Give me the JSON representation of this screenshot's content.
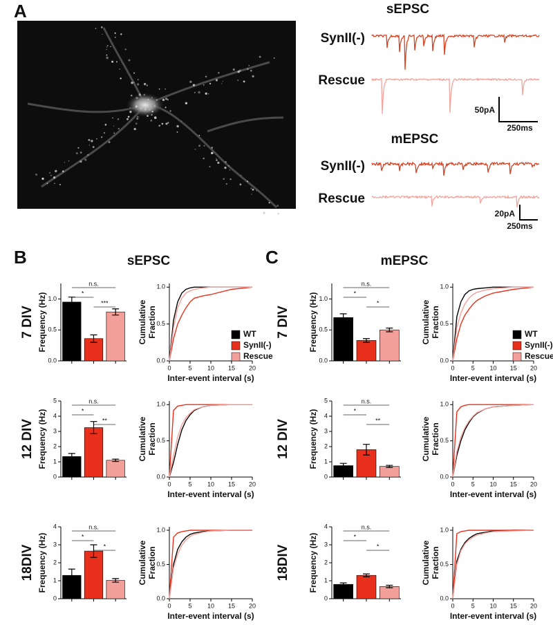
{
  "figure": {
    "panel_labels": [
      "A",
      "B",
      "C"
    ],
    "traces": {
      "s_title": "sEPSC",
      "s_labels": [
        "SynII(-)",
        "Rescue"
      ],
      "s_scale": [
        "50pA",
        "250ms"
      ],
      "m_title": "mEPSC",
      "m_labels": [
        "SynII(-)",
        "Rescue"
      ],
      "m_scale": [
        "20pA",
        "250ms"
      ]
    },
    "panel_titles": [
      "sEPSC",
      "mEPSC"
    ],
    "row_labels": [
      [
        "7 DIV",
        "12 DIV",
        "18DIV"
      ],
      [
        "7 DIV",
        "12 DIV",
        "18DIV"
      ]
    ]
  },
  "chart_data": [
    {
      "type": "bar",
      "ylabel": "Frequency (Hz)",
      "categories": [
        null,
        null,
        null
      ],
      "values": [
        0.95,
        0.36,
        0.79
      ],
      "errors": [
        0.08,
        0.06,
        0.05
      ],
      "colors": [
        "#000000",
        "#e8301c",
        "#f4a09a"
      ],
      "ylim": [
        0,
        1.25
      ],
      "yticks": [
        {
          "value": 0,
          "label": "0.0"
        },
        {
          "value": 0.5,
          "label": "0.5"
        },
        {
          "value": 1,
          "label": "1.0"
        }
      ],
      "annotations": [
        "n.s.",
        "*",
        "***"
      ]
    },
    {
      "type": "line",
      "xlabel": "Inter-event interval (s)",
      "ylabel": [
        "Cumulative",
        "Fraction"
      ],
      "x": [
        0,
        1,
        2,
        3,
        4,
        5,
        6,
        8,
        10,
        15,
        20
      ],
      "xlim": [
        0,
        20
      ],
      "xticks": [
        0,
        5,
        10,
        15,
        20
      ],
      "ylim": [
        0,
        1.05
      ],
      "yticks": [
        {
          "value": 0,
          "label": "0.0"
        },
        {
          "value": 0.5,
          "label": "0.5"
        },
        {
          "value": 1,
          "label": "1.0"
        }
      ],
      "legend": "lower right",
      "series": [
        {
          "name": "WT",
          "color": "#000000",
          "values": [
            0,
            0.55,
            0.8,
            0.92,
            0.97,
            0.99,
            1,
            1,
            1,
            1,
            1
          ]
        },
        {
          "name": "SynII(-)",
          "color": "#e8301c",
          "values": [
            0,
            0.3,
            0.5,
            0.62,
            0.72,
            0.8,
            0.85,
            0.88,
            0.9,
            0.97,
            1
          ]
        },
        {
          "name": "Rescue",
          "color": "#f4a09a",
          "values": [
            0,
            0.45,
            0.72,
            0.85,
            0.92,
            0.95,
            0.97,
            0.99,
            1,
            1,
            1
          ]
        }
      ]
    },
    {
      "type": "bar",
      "ylabel": "Frequency (Hz)",
      "categories": [
        null,
        null,
        null
      ],
      "values": [
        1.35,
        3.25,
        1.1
      ],
      "errors": [
        0.2,
        0.4,
        0.08
      ],
      "colors": [
        "#000000",
        "#e8301c",
        "#f4a09a"
      ],
      "ylim": [
        0,
        5
      ],
      "yticks": [
        0,
        1,
        2,
        3,
        4,
        5
      ],
      "annotations": [
        "n.s.",
        "*",
        "**"
      ]
    },
    {
      "type": "line",
      "xlabel": "Inter-event interval (s)",
      "ylabel": [
        "Cumulative",
        "Fraction"
      ],
      "x": [
        0,
        1,
        2,
        3,
        4,
        5,
        6,
        8,
        10,
        15,
        20
      ],
      "xlim": [
        0,
        20
      ],
      "xticks": [
        0,
        5,
        10,
        15,
        20
      ],
      "ylim": [
        0,
        1.05
      ],
      "yticks": [
        {
          "value": 0,
          "label": "0.0"
        },
        {
          "value": 0.5,
          "label": "0.5"
        },
        {
          "value": 1,
          "label": "1.0"
        }
      ],
      "series": [
        {
          "name": "WT",
          "color": "#000000",
          "values": [
            0,
            0.2,
            0.45,
            0.65,
            0.78,
            0.86,
            0.92,
            0.97,
            0.99,
            1,
            1
          ]
        },
        {
          "name": "SynII(-)",
          "color": "#e8301c",
          "values": [
            0,
            0.92,
            0.98,
            0.99,
            1,
            1,
            1,
            1,
            1,
            1,
            1
          ]
        },
        {
          "name": "Rescue",
          "color": "#f4a09a",
          "values": [
            0,
            0.3,
            0.55,
            0.72,
            0.82,
            0.88,
            0.93,
            0.97,
            0.99,
            1,
            1
          ]
        }
      ]
    },
    {
      "type": "bar",
      "ylabel": "Frequency (Hz)",
      "categories": [
        null,
        null,
        null
      ],
      "values": [
        1.3,
        2.65,
        1.02
      ],
      "errors": [
        0.35,
        0.35,
        0.1
      ],
      "colors": [
        "#000000",
        "#e8301c",
        "#f4a09a"
      ],
      "ylim": [
        0,
        4
      ],
      "yticks": [
        0,
        1,
        2,
        3,
        4
      ],
      "annotations": [
        "n.s.",
        "*",
        "*"
      ]
    },
    {
      "type": "line",
      "xlabel": "Inter-event interval (s)",
      "ylabel": [
        "Cumulative",
        "Fraction"
      ],
      "x": [
        0,
        1,
        2,
        3,
        4,
        5,
        6,
        8,
        10,
        15,
        20
      ],
      "xlim": [
        0,
        20
      ],
      "xticks": [
        0,
        5,
        10,
        15,
        20
      ],
      "ylim": [
        0,
        1.05
      ],
      "yticks": [
        {
          "value": 0,
          "label": "0.0"
        },
        {
          "value": 0.5,
          "label": "0.5"
        },
        {
          "value": 1,
          "label": "1.0"
        }
      ],
      "series": [
        {
          "name": "WT",
          "color": "#000000",
          "values": [
            0,
            0.5,
            0.72,
            0.83,
            0.9,
            0.94,
            0.96,
            0.98,
            0.99,
            1,
            1
          ]
        },
        {
          "name": "SynII(-)",
          "color": "#e8301c",
          "values": [
            0,
            0.9,
            0.96,
            0.98,
            0.99,
            1,
            1,
            1,
            1,
            1,
            1
          ]
        },
        {
          "name": "Rescue",
          "color": "#f4a09a",
          "values": [
            0,
            0.45,
            0.65,
            0.78,
            0.86,
            0.91,
            0.94,
            0.97,
            0.99,
            1,
            1
          ]
        }
      ]
    },
    {
      "type": "bar",
      "ylabel": "Frequency (Hz)",
      "categories": [
        null,
        null,
        null
      ],
      "values": [
        0.7,
        0.33,
        0.5
      ],
      "errors": [
        0.06,
        0.03,
        0.03
      ],
      "colors": [
        "#000000",
        "#e8301c",
        "#f4a09a"
      ],
      "ylim": [
        0,
        1.25
      ],
      "yticks": [
        {
          "value": 0,
          "label": "0.0"
        },
        {
          "value": 0.5,
          "label": "0.5"
        },
        {
          "value": 1,
          "label": "1.0"
        }
      ],
      "annotations": [
        "n.s.",
        "*",
        "*"
      ]
    },
    {
      "type": "line",
      "xlabel": "Inter-event interval (s)",
      "ylabel": [
        "Cumulative",
        "Fraction"
      ],
      "x": [
        0,
        1,
        2,
        3,
        4,
        5,
        6,
        8,
        10,
        15,
        20
      ],
      "xlim": [
        0,
        20
      ],
      "xticks": [
        0,
        5,
        10,
        15,
        20
      ],
      "ylim": [
        0,
        1.05
      ],
      "yticks": [
        {
          "value": 0,
          "label": "0.0"
        },
        {
          "value": 0.5,
          "label": "0.5"
        },
        {
          "value": 1,
          "label": "1.0"
        }
      ],
      "legend": "lower right",
      "series": [
        {
          "name": "WT",
          "color": "#000000",
          "values": [
            0,
            0.6,
            0.8,
            0.9,
            0.95,
            0.97,
            0.98,
            0.99,
            1,
            1,
            1
          ]
        },
        {
          "name": "SynII(-)",
          "color": "#e8301c",
          "values": [
            0,
            0.3,
            0.5,
            0.62,
            0.7,
            0.77,
            0.82,
            0.88,
            0.92,
            0.97,
            1
          ]
        },
        {
          "name": "Rescue",
          "color": "#f4a09a",
          "values": [
            0,
            0.45,
            0.65,
            0.77,
            0.85,
            0.9,
            0.93,
            0.96,
            0.98,
            1,
            1
          ]
        }
      ]
    },
    {
      "type": "bar",
      "ylabel": "Frequency (Hz)",
      "categories": [
        null,
        null,
        null
      ],
      "values": [
        0.75,
        1.8,
        0.7
      ],
      "errors": [
        0.15,
        0.35,
        0.07
      ],
      "colors": [
        "#000000",
        "#e8301c",
        "#f4a09a"
      ],
      "ylim": [
        0,
        5
      ],
      "yticks": [
        0,
        1,
        2,
        3,
        4,
        5
      ],
      "annotations": [
        "n.s.",
        "*",
        "**"
      ]
    },
    {
      "type": "line",
      "xlabel": "Inter-event interval (s)",
      "ylabel": [
        "Cumulative",
        "Fraction"
      ],
      "x": [
        0,
        1,
        2,
        3,
        4,
        5,
        6,
        8,
        10,
        15,
        20
      ],
      "xlim": [
        0,
        20
      ],
      "xticks": [
        0,
        5,
        10,
        15,
        20
      ],
      "ylim": [
        0,
        1.05
      ],
      "yticks": [
        {
          "value": 0,
          "label": "0.0"
        },
        {
          "value": 0.5,
          "label": "0.5"
        },
        {
          "value": 1,
          "label": "1.0"
        }
      ],
      "series": [
        {
          "name": "WT",
          "color": "#000000",
          "values": [
            0,
            0.3,
            0.5,
            0.65,
            0.75,
            0.83,
            0.88,
            0.94,
            0.97,
            0.99,
            1
          ]
        },
        {
          "name": "SynII(-)",
          "color": "#e8301c",
          "values": [
            0,
            0.9,
            0.97,
            0.99,
            1,
            1,
            1,
            1,
            1,
            1,
            1
          ]
        },
        {
          "name": "Rescue",
          "color": "#f4a09a",
          "values": [
            0,
            0.35,
            0.55,
            0.68,
            0.77,
            0.84,
            0.89,
            0.94,
            0.97,
            0.99,
            1
          ]
        }
      ]
    },
    {
      "type": "bar",
      "ylabel": "Frequency (Hz)",
      "categories": [
        null,
        null,
        null
      ],
      "values": [
        0.8,
        1.3,
        0.68
      ],
      "errors": [
        0.08,
        0.08,
        0.07
      ],
      "colors": [
        "#000000",
        "#e8301c",
        "#f4a09a"
      ],
      "ylim": [
        0,
        4
      ],
      "yticks": [
        0,
        1,
        2,
        3,
        4
      ],
      "annotations": [
        "n.s.",
        "*",
        "*"
      ]
    },
    {
      "type": "line",
      "xlabel": "Inter-event interval (s)",
      "ylabel": [
        "Cumulative",
        "Fraction"
      ],
      "x": [
        0,
        1,
        2,
        3,
        4,
        5,
        6,
        8,
        10,
        15,
        20
      ],
      "xlim": [
        0,
        20
      ],
      "xticks": [
        0,
        5,
        10,
        15,
        20
      ],
      "ylim": [
        0,
        1.05
      ],
      "yticks": [
        {
          "value": 0,
          "label": "0.0"
        },
        {
          "value": 0.5,
          "label": "0.5"
        },
        {
          "value": 1,
          "label": "1.0"
        }
      ],
      "series": [
        {
          "name": "WT",
          "color": "#000000",
          "values": [
            0,
            0.55,
            0.72,
            0.82,
            0.88,
            0.92,
            0.95,
            0.97,
            0.99,
            1,
            1
          ]
        },
        {
          "name": "SynII(-)",
          "color": "#e8301c",
          "values": [
            0,
            0.95,
            0.98,
            0.99,
            1,
            1,
            1,
            1,
            1,
            1,
            1
          ]
        },
        {
          "name": "Rescue",
          "color": "#f4a09a",
          "values": [
            0,
            0.5,
            0.7,
            0.8,
            0.86,
            0.9,
            0.93,
            0.96,
            0.98,
            0.99,
            1
          ]
        }
      ]
    }
  ]
}
